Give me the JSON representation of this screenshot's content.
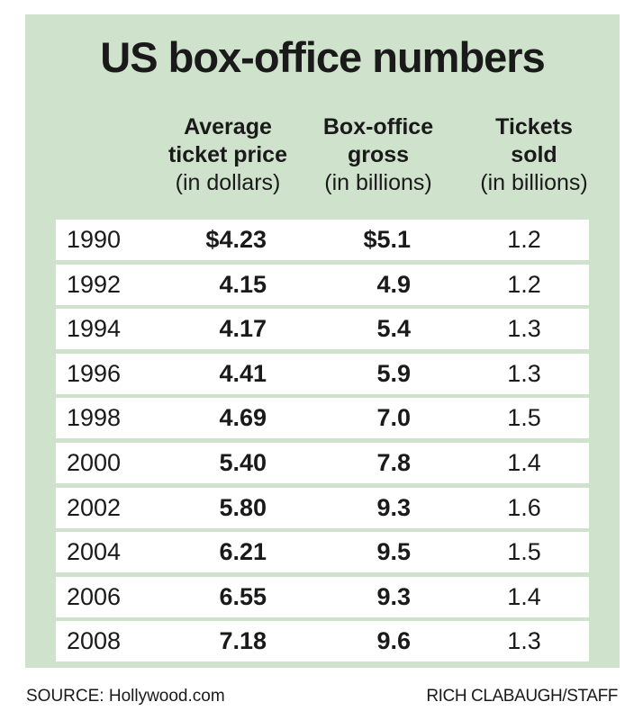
{
  "chart_data": {
    "type": "table",
    "title": "US box-office numbers",
    "columns": [
      {
        "key": "year",
        "label": "",
        "units": ""
      },
      {
        "key": "price",
        "label": "Average ticket price",
        "units": "(in dollars)"
      },
      {
        "key": "gross",
        "label": "Box-office gross",
        "units": "(in billions)"
      },
      {
        "key": "tickets",
        "label": "Tickets sold",
        "units": "(in billions)"
      }
    ],
    "rows": [
      {
        "year": "1990",
        "price": "$4.23",
        "gross": "$5.1",
        "tickets": "1.2"
      },
      {
        "year": "1992",
        "price": "4.15",
        "gross": "4.9",
        "tickets": "1.2"
      },
      {
        "year": "1994",
        "price": "4.17",
        "gross": "5.4",
        "tickets": "1.3"
      },
      {
        "year": "1996",
        "price": "4.41",
        "gross": "5.9",
        "tickets": "1.3"
      },
      {
        "year": "1998",
        "price": "4.69",
        "gross": "7.0",
        "tickets": "1.5"
      },
      {
        "year": "2000",
        "price": "5.40",
        "gross": "7.8",
        "tickets": "1.4"
      },
      {
        "year": "2002",
        "price": "5.80",
        "gross": "9.3",
        "tickets": "1.6"
      },
      {
        "year": "2004",
        "price": "6.21",
        "gross": "9.5",
        "tickets": "1.5"
      },
      {
        "year": "2006",
        "price": "6.55",
        "gross": "9.3",
        "tickets": "1.4"
      },
      {
        "year": "2008",
        "price": "7.18",
        "gross": "9.6",
        "tickets": "1.3"
      }
    ]
  },
  "headers": {
    "price": {
      "line1": "Average",
      "line2": "ticket price",
      "units": "(in dollars)"
    },
    "gross": {
      "line1": "Box-office",
      "line2": "gross",
      "units": "(in billions)"
    },
    "tickets": {
      "line1": "Tickets",
      "line2": "sold",
      "units": "(in billions)"
    }
  },
  "footer": {
    "source": "SOURCE: Hollywood.com",
    "credit": "RICH CLABAUGH/STAFF"
  },
  "colors": {
    "panel_bg": "#cfe3cc",
    "row_bg": "#ffffff",
    "text": "#1a1a1a"
  }
}
